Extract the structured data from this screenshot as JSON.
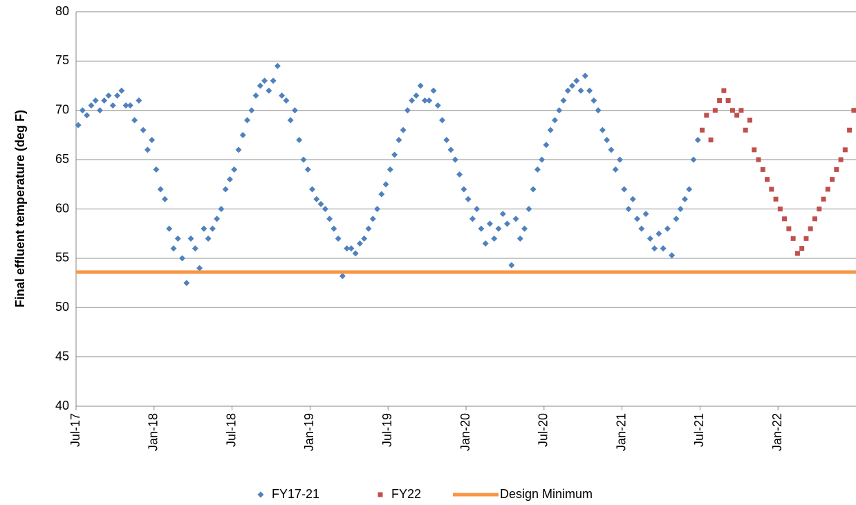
{
  "chart_data": {
    "type": "scatter",
    "y_label": "Final effluent temperature (deg F)",
    "ylim": [
      40,
      80
    ],
    "yticks": [
      40,
      45,
      50,
      55,
      60,
      65,
      70,
      75,
      80
    ],
    "grid": true,
    "xlim": [
      "Jul-17",
      "Jun-22"
    ],
    "xticks": [
      "Jul-17",
      "Jan-18",
      "Jul-18",
      "Jan-19",
      "Jul-19",
      "Jan-20",
      "Jul-20",
      "Jan-21",
      "Jul-21",
      "Jan-22"
    ],
    "legend": "bottom",
    "series": [
      {
        "name": "FY17-21",
        "color": "#4f81bd",
        "marker": "diamond",
        "x": [
          "Jul-17",
          "Jul-17",
          "Jul-17",
          "Aug-17",
          "Aug-17",
          "Aug-17",
          "Sep-17",
          "Sep-17",
          "Sep-17",
          "Oct-17",
          "Oct-17",
          "Oct-17",
          "Nov-17",
          "Nov-17",
          "Nov-17",
          "Dec-17",
          "Dec-17",
          "Dec-17",
          "Jan-18",
          "Jan-18",
          "Jan-18",
          "Feb-18",
          "Feb-18",
          "Feb-18",
          "Mar-18",
          "Mar-18",
          "Mar-18",
          "Apr-18",
          "Apr-18",
          "Apr-18",
          "May-18",
          "May-18",
          "May-18",
          "Jun-18",
          "Jun-18",
          "Jun-18",
          "Jul-18",
          "Jul-18",
          "Jul-18",
          "Aug-18",
          "Aug-18",
          "Aug-18",
          "Sep-18",
          "Sep-18",
          "Sep-18",
          "Oct-18",
          "Oct-18",
          "Oct-18",
          "Nov-18",
          "Nov-18",
          "Nov-18",
          "Dec-18",
          "Dec-18",
          "Dec-18",
          "Jan-19",
          "Jan-19",
          "Jan-19",
          "Feb-19",
          "Feb-19",
          "Feb-19",
          "Mar-19",
          "Mar-19",
          "Mar-19",
          "Apr-19",
          "Apr-19",
          "Apr-19",
          "May-19",
          "May-19",
          "May-19",
          "Jun-19",
          "Jun-19",
          "Jun-19",
          "Jul-19",
          "Jul-19",
          "Jul-19",
          "Aug-19",
          "Aug-19",
          "Aug-19",
          "Sep-19",
          "Sep-19",
          "Sep-19",
          "Oct-19",
          "Oct-19",
          "Oct-19",
          "Nov-19",
          "Nov-19",
          "Nov-19",
          "Dec-19",
          "Dec-19",
          "Dec-19",
          "Jan-20",
          "Jan-20",
          "Jan-20",
          "Feb-20",
          "Feb-20",
          "Feb-20",
          "Mar-20",
          "Mar-20",
          "Mar-20",
          "Apr-20",
          "Apr-20",
          "Apr-20",
          "May-20",
          "May-20",
          "May-20",
          "Jun-20",
          "Jun-20",
          "Jun-20",
          "Jul-20",
          "Jul-20",
          "Jul-20",
          "Aug-20",
          "Aug-20",
          "Aug-20",
          "Sep-20",
          "Sep-20",
          "Sep-20",
          "Oct-20",
          "Oct-20",
          "Oct-20",
          "Nov-20",
          "Nov-20",
          "Nov-20",
          "Dec-20",
          "Dec-20",
          "Dec-20",
          "Jan-21",
          "Jan-21",
          "Jan-21",
          "Feb-21",
          "Feb-21",
          "Feb-21",
          "Mar-21",
          "Mar-21",
          "Mar-21",
          "Apr-21",
          "Apr-21",
          "Apr-21",
          "May-21",
          "May-21",
          "May-21",
          "Jun-21",
          "Jun-21",
          "Jun-21"
        ],
        "values": [
          68.5,
          70,
          69.5,
          70.5,
          71,
          70,
          71,
          71.5,
          70.5,
          71.5,
          72,
          70.5,
          70.5,
          69,
          71,
          68,
          66,
          67,
          64,
          62,
          61,
          58,
          56,
          57,
          55,
          52.5,
          57,
          56,
          54,
          58,
          57,
          58,
          59,
          60,
          62,
          63,
          64,
          66,
          67.5,
          69,
          70,
          71.5,
          72.5,
          73,
          72,
          73,
          74.5,
          71.5,
          71,
          69,
          70,
          67,
          65,
          64,
          62,
          61,
          60.5,
          60,
          59,
          58,
          57,
          53.2,
          56,
          56,
          55.5,
          56.5,
          57,
          58,
          59,
          60,
          61.5,
          62.5,
          64,
          65.5,
          67,
          68,
          70,
          71,
          71.5,
          72.5,
          71,
          71,
          72,
          70.5,
          69,
          67,
          66,
          65,
          63.5,
          62,
          61,
          59,
          60,
          58,
          56.5,
          58.5,
          57,
          58,
          59.5,
          58.5,
          54.3,
          59,
          57,
          58,
          60,
          62,
          64,
          65,
          66.5,
          68,
          69,
          70,
          71,
          72,
          72.5,
          73,
          72,
          73.5,
          72,
          71,
          70,
          68,
          67,
          66,
          64,
          65,
          62,
          60,
          61,
          59,
          58,
          59.5,
          57,
          56,
          57.5,
          56,
          58,
          55.3,
          59,
          60,
          61,
          62,
          65,
          67
        ]
      },
      {
        "name": "FY22",
        "color": "#c0504d",
        "marker": "square",
        "x": [
          "Jul-21",
          "Jul-21",
          "Jul-21",
          "Aug-21",
          "Aug-21",
          "Aug-21",
          "Sep-21",
          "Sep-21",
          "Sep-21",
          "Oct-21",
          "Oct-21",
          "Oct-21",
          "Nov-21",
          "Nov-21",
          "Nov-21",
          "Dec-21",
          "Dec-21",
          "Dec-21",
          "Jan-22",
          "Jan-22",
          "Jan-22",
          "Feb-22",
          "Feb-22",
          "Feb-22",
          "Mar-22",
          "Mar-22",
          "Mar-22",
          "Apr-22",
          "Apr-22",
          "Apr-22",
          "May-22",
          "May-22",
          "May-22",
          "Jun-22",
          "Jun-22",
          "Jun-22"
        ],
        "values": [
          68,
          69.5,
          67,
          70,
          71,
          72,
          71,
          70,
          69.5,
          70,
          68,
          69,
          66,
          65,
          64,
          63,
          62,
          61,
          60,
          59,
          58,
          57,
          55.5,
          56,
          57,
          58,
          59,
          60,
          61,
          62,
          63,
          64,
          65,
          66,
          68,
          70
        ]
      },
      {
        "name": "Design Minimum",
        "color": "#f79646",
        "marker": "line",
        "y": 53.6
      }
    ]
  }
}
